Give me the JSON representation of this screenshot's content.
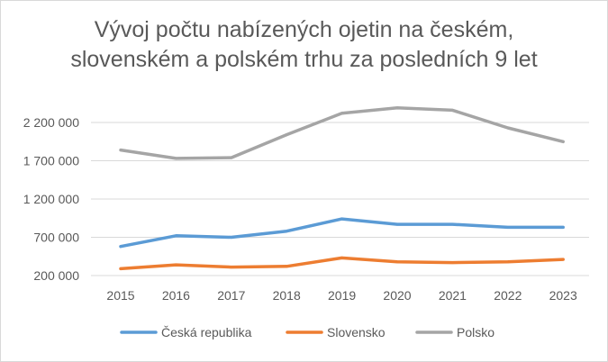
{
  "chart_data": {
    "type": "line",
    "title_lines": [
      "Vývoj počtu nabízených ojetin na českém,",
      "slovenském a polském trhu za posledních 9 let"
    ],
    "categories": [
      "2015",
      "2016",
      "2017",
      "2018",
      "2019",
      "2020",
      "2021",
      "2022",
      "2023"
    ],
    "y_ticks": [
      {
        "value": 200000,
        "label": "200 000"
      },
      {
        "value": 700000,
        "label": "700 000"
      },
      {
        "value": 1200000,
        "label": "1 200 000"
      },
      {
        "value": 1700000,
        "label": "1 700 000"
      },
      {
        "value": 2200000,
        "label": "2 200 000"
      }
    ],
    "ylim": [
      200000,
      2200000
    ],
    "grid": "horizontal",
    "legend_position": "bottom",
    "series": [
      {
        "name": "Česká republika",
        "color": "#5b9bd5",
        "values": [
          580000,
          720000,
          700000,
          780000,
          940000,
          870000,
          870000,
          830000,
          830000
        ]
      },
      {
        "name": "Slovensko",
        "color": "#ed7d31",
        "values": [
          290000,
          340000,
          310000,
          320000,
          430000,
          380000,
          370000,
          380000,
          410000
        ]
      },
      {
        "name": "Polsko",
        "color": "#a5a5a5",
        "values": [
          1840000,
          1730000,
          1740000,
          2040000,
          2320000,
          2390000,
          2360000,
          2130000,
          1950000
        ]
      }
    ]
  }
}
